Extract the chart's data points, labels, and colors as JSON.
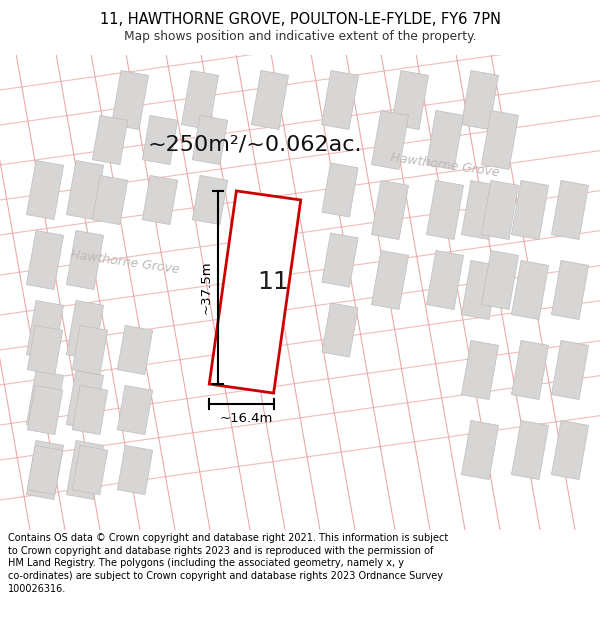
{
  "title": "11, HAWTHORNE GROVE, POULTON-LE-FYLDE, FY6 7PN",
  "subtitle": "Map shows position and indicative extent of the property.",
  "area_text": "~250m²/~0.062ac.",
  "dim_width": "~16.4m",
  "dim_height": "~37.5m",
  "plot_number": "11",
  "footer_line1": "Contains OS data © Crown copyright and database right 2021. This information is subject",
  "footer_line2": "to Crown copyright and database rights 2023 and is reproduced with the permission of",
  "footer_line3": "HM Land Registry. The polygons (including the associated geometry, namely x, y",
  "footer_line4": "co-ordinates) are subject to Crown copyright and database rights 2023 Ordnance Survey",
  "footer_line5": "100026316.",
  "map_bg": "#ffffff",
  "road_line_color": "#e8a0a0",
  "road_fill_color": "#f0d8d8",
  "building_fill": "#d8d5d5",
  "building_edge": "#c0bcbc",
  "plot_color": "#cc0000",
  "plot_fill": "#ffffff",
  "title_color": "#000000",
  "footer_color": "#000000",
  "road_label_color": "#c0b8b8",
  "area_text_color": "#111111"
}
